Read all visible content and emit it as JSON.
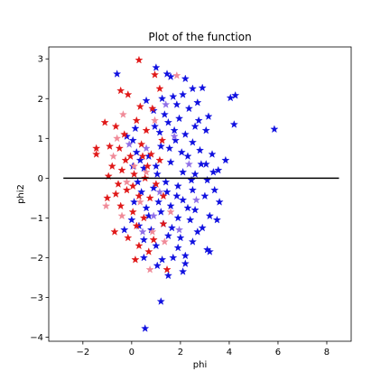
{
  "chart_data": {
    "type": "scatter",
    "title": "Plot of the function",
    "xlabel": "phi",
    "ylabel": "phi2",
    "xlim": [
      -3.4,
      9.0
    ],
    "ylim": [
      -4.1,
      3.3
    ],
    "xticks": [
      -2,
      0,
      2,
      4,
      6,
      8
    ],
    "yticks": [
      -4,
      -3,
      -2,
      -1,
      0,
      1,
      2,
      3
    ],
    "grid": false,
    "legend": "none",
    "marker": "star",
    "reference_line": {
      "from": [
        -2.8,
        0.0
      ],
      "to": [
        8.5,
        0.0
      ],
      "color": "#000000"
    },
    "colors": {
      "blue": "#1010e0",
      "red": "#e01818",
      "pink": "#f08a98",
      "violet": "#9070e8"
    },
    "series": [
      {
        "color": "blue",
        "points": [
          [
            -0.6,
            2.62
          ],
          [
            1.0,
            2.78
          ],
          [
            1.45,
            2.62
          ],
          [
            1.6,
            2.55
          ],
          [
            2.2,
            2.5
          ],
          [
            2.5,
            2.25
          ],
          [
            2.9,
            2.27
          ],
          [
            4.25,
            2.08
          ],
          [
            4.05,
            2.02
          ],
          [
            2.1,
            2.1
          ],
          [
            1.7,
            2.05
          ],
          [
            1.25,
            2.0
          ],
          [
            0.6,
            1.95
          ],
          [
            1.85,
            1.85
          ],
          [
            2.7,
            1.9
          ],
          [
            4.2,
            1.35
          ],
          [
            5.85,
            1.23
          ],
          [
            3.15,
            1.55
          ],
          [
            3.05,
            1.2
          ],
          [
            2.6,
            1.3
          ],
          [
            2.2,
            1.1
          ],
          [
            1.5,
            1.4
          ],
          [
            0.95,
            1.3
          ],
          [
            1.35,
            1.6
          ],
          [
            1.95,
            1.5
          ],
          [
            2.5,
            0.9
          ],
          [
            3.3,
            0.6
          ],
          [
            3.85,
            0.45
          ],
          [
            3.55,
            0.2
          ],
          [
            3.05,
            0.35
          ],
          [
            2.8,
            0.7
          ],
          [
            2.3,
            0.55
          ],
          [
            1.8,
            0.95
          ],
          [
            1.2,
            0.8
          ],
          [
            0.7,
            0.55
          ],
          [
            0.2,
            0.65
          ],
          [
            0.15,
            1.25
          ],
          [
            -0.2,
            1.05
          ],
          [
            0.05,
            0.3
          ],
          [
            0.5,
            0.25
          ],
          [
            1.0,
            0.3
          ],
          [
            1.6,
            0.4
          ],
          [
            2.1,
            0.15
          ],
          [
            2.6,
            0.1
          ],
          [
            3.1,
            -0.05
          ],
          [
            3.4,
            -0.3
          ],
          [
            3.0,
            -0.45
          ],
          [
            2.5,
            -0.3
          ],
          [
            1.9,
            -0.2
          ],
          [
            1.4,
            -0.1
          ],
          [
            0.9,
            -0.25
          ],
          [
            0.4,
            -0.35
          ],
          [
            0.1,
            -0.6
          ],
          [
            0.6,
            -0.75
          ],
          [
            1.1,
            -0.6
          ],
          [
            1.6,
            -0.7
          ],
          [
            2.1,
            -0.55
          ],
          [
            2.6,
            -0.8
          ],
          [
            3.2,
            -0.95
          ],
          [
            3.5,
            -1.05
          ],
          [
            2.9,
            -1.25
          ],
          [
            2.4,
            -1.05
          ],
          [
            1.9,
            -1.0
          ],
          [
            1.3,
            -1.15
          ],
          [
            0.8,
            -1.3
          ],
          [
            0.3,
            -1.2
          ],
          [
            0.0,
            -1.05
          ],
          [
            0.5,
            -1.55
          ],
          [
            1.0,
            -1.7
          ],
          [
            1.5,
            -1.45
          ],
          [
            2.0,
            -1.5
          ],
          [
            2.5,
            -1.6
          ],
          [
            3.1,
            -1.8
          ],
          [
            3.2,
            -1.85
          ],
          [
            2.2,
            -1.95
          ],
          [
            1.7,
            -2.0
          ],
          [
            1.25,
            -2.05
          ],
          [
            2.2,
            -2.15
          ],
          [
            1.5,
            -2.45
          ],
          [
            1.2,
            -3.1
          ],
          [
            0.55,
            -3.78
          ],
          [
            2.1,
            -2.35
          ],
          [
            1.05,
            -2.2
          ],
          [
            0.5,
            -2.0
          ],
          [
            -0.3,
            -1.3
          ],
          [
            0.05,
            0.95
          ],
          [
            0.9,
            1.7
          ],
          [
            1.15,
            1.15
          ],
          [
            1.75,
            1.2
          ],
          [
            2.35,
            1.75
          ],
          [
            2.75,
            1.45
          ],
          [
            1.55,
            0.75
          ],
          [
            2.45,
            -0.05
          ],
          [
            1.85,
            -0.45
          ],
          [
            1.05,
            0.1
          ],
          [
            0.25,
            -0.1
          ],
          [
            2.7,
            -1.35
          ],
          [
            1.9,
            -1.75
          ],
          [
            0.7,
            -0.95
          ],
          [
            3.35,
            0.15
          ],
          [
            2.05,
            0.65
          ],
          [
            1.45,
            -0.35
          ],
          [
            2.85,
            0.35
          ],
          [
            1.2,
            -0.85
          ],
          [
            0.35,
            0.45
          ],
          [
            3.6,
            -0.6
          ],
          [
            2.3,
            -0.75
          ],
          [
            1.65,
            -1.25
          ]
        ]
      },
      {
        "color": "red",
        "points": [
          [
            0.3,
            2.97
          ],
          [
            0.95,
            2.6
          ],
          [
            -0.45,
            2.2
          ],
          [
            -0.15,
            2.1
          ],
          [
            1.15,
            2.25
          ],
          [
            0.35,
            1.8
          ],
          [
            -1.1,
            1.4
          ],
          [
            -0.65,
            1.3
          ],
          [
            -0.3,
            1.1
          ],
          [
            0.2,
            1.45
          ],
          [
            0.6,
            1.2
          ],
          [
            -1.45,
            0.75
          ],
          [
            -1.45,
            0.6
          ],
          [
            -0.9,
            0.8
          ],
          [
            -0.5,
            0.75
          ],
          [
            -0.05,
            0.55
          ],
          [
            0.4,
            0.85
          ],
          [
            0.8,
            0.6
          ],
          [
            1.15,
            0.45
          ],
          [
            -0.8,
            0.3
          ],
          [
            -0.4,
            0.2
          ],
          [
            0.1,
            0.1
          ],
          [
            0.55,
            0.0
          ],
          [
            1.0,
            -0.15
          ],
          [
            -0.55,
            -0.15
          ],
          [
            -0.2,
            -0.3
          ],
          [
            0.3,
            -0.45
          ],
          [
            0.75,
            -0.5
          ],
          [
            -1.0,
            -0.5
          ],
          [
            -0.45,
            -0.7
          ],
          [
            0.05,
            -0.85
          ],
          [
            0.5,
            -1.0
          ],
          [
            -0.7,
            -1.35
          ],
          [
            -0.15,
            -1.5
          ],
          [
            0.3,
            -1.7
          ],
          [
            0.15,
            -2.05
          ],
          [
            0.7,
            -1.85
          ],
          [
            1.45,
            -2.3
          ],
          [
            0.9,
            -1.55
          ],
          [
            1.3,
            -1.15
          ],
          [
            1.25,
            0.95
          ],
          [
            0.85,
            1.75
          ],
          [
            -0.25,
            0.45
          ],
          [
            0.05,
            -0.2
          ],
          [
            0.65,
            0.3
          ],
          [
            -0.65,
            -0.4
          ],
          [
            1.3,
            -0.45
          ],
          [
            0.2,
            -1.2
          ],
          [
            -0.95,
            0.05
          ],
          [
            0.45,
            0.55
          ]
        ]
      },
      {
        "color": "pink",
        "points": [
          [
            1.85,
            2.58
          ],
          [
            -0.35,
            1.6
          ],
          [
            0.95,
            1.45
          ],
          [
            -0.75,
            0.55
          ],
          [
            -0.2,
            -0.1
          ],
          [
            0.6,
            0.15
          ],
          [
            -1.05,
            -0.7
          ],
          [
            0.35,
            -0.6
          ],
          [
            0.85,
            -1.35
          ],
          [
            1.35,
            -1.6
          ],
          [
            0.75,
            -2.3
          ],
          [
            -0.4,
            -0.95
          ],
          [
            0.1,
            0.3
          ],
          [
            1.6,
            -0.85
          ],
          [
            -0.6,
            1.0
          ]
        ]
      },
      {
        "color": "violet",
        "points": [
          [
            1.75,
            1.05
          ],
          [
            0.6,
            0.75
          ],
          [
            2.35,
            0.35
          ],
          [
            1.15,
            -0.35
          ],
          [
            -0.1,
            0.85
          ],
          [
            1.95,
            -1.3
          ],
          [
            0.45,
            -1.35
          ],
          [
            2.65,
            -0.55
          ],
          [
            1.4,
            1.85
          ],
          [
            0.9,
            -0.95
          ]
        ]
      }
    ]
  }
}
